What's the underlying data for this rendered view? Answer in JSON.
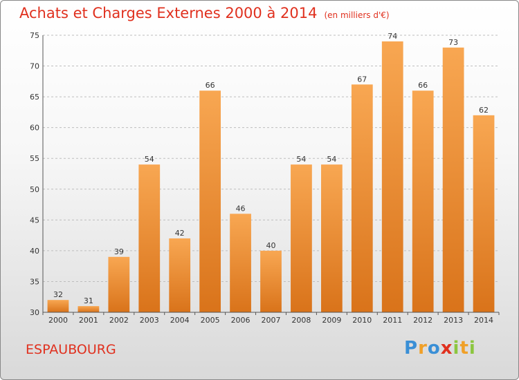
{
  "title": "Achats et Charges Externes 2000 à 2014",
  "subtitle": "(en milliers d'€)",
  "location": "ESPAUBOURG",
  "brand": {
    "letters": [
      "P",
      "r",
      "o",
      "x",
      "i",
      "t",
      "i"
    ],
    "colors": [
      "#3a8fd6",
      "#f0a028",
      "#3a8fd6",
      "#e0301e",
      "#8cc63f",
      "#f0a028",
      "#8cc63f"
    ]
  },
  "colors": {
    "bar_light": "#f8a752",
    "bar_dark": "#d9731a",
    "title": "#e0301e"
  },
  "chart_data": {
    "type": "bar",
    "categories": [
      "2000",
      "2001",
      "2002",
      "2003",
      "2004",
      "2005",
      "2006",
      "2007",
      "2008",
      "2009",
      "2010",
      "2011",
      "2012",
      "2013",
      "2014"
    ],
    "values": [
      32,
      31,
      39,
      54,
      42,
      66,
      46,
      40,
      54,
      54,
      67,
      74,
      66,
      73,
      62
    ],
    "title": "Achats et Charges Externes 2000 à 2014",
    "subtitle": "(en milliers d'€)",
    "xlabel": "",
    "ylabel": "",
    "ylim": [
      30,
      75
    ],
    "yticks": [
      30,
      35,
      40,
      45,
      50,
      55,
      60,
      65,
      70,
      75
    ],
    "grid": "horizontal dashed",
    "legend": "none"
  }
}
